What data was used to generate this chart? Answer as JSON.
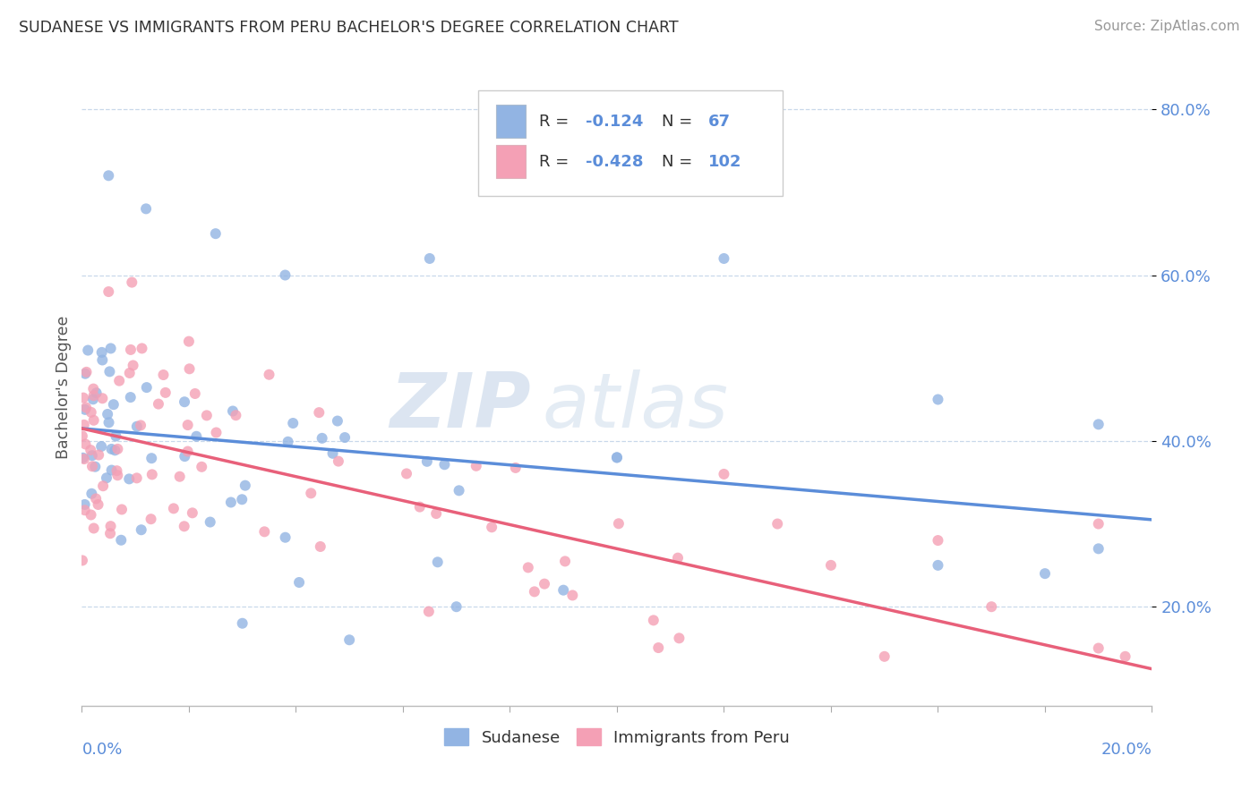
{
  "title": "SUDANESE VS IMMIGRANTS FROM PERU BACHELOR'S DEGREE CORRELATION CHART",
  "source": "Source: ZipAtlas.com",
  "ylabel": "Bachelor's Degree",
  "watermark_zip": "ZIP",
  "watermark_atlas": "atlas",
  "series": [
    {
      "name": "Sudanese",
      "scatter_color": "#92b4e3",
      "line_color": "#5b8dd9",
      "R": -0.124,
      "N": 67
    },
    {
      "name": "Immigrants from Peru",
      "scatter_color": "#f4a0b5",
      "line_color": "#e8607a",
      "R": -0.428,
      "N": 102
    }
  ],
  "xlim": [
    0.0,
    0.2
  ],
  "ylim": [
    0.08,
    0.85
  ],
  "yticks": [
    0.2,
    0.4,
    0.6,
    0.8
  ],
  "ytick_labels": [
    "20.0%",
    "40.0%",
    "60.0%",
    "80.0%"
  ],
  "blue_line": {
    "x0": 0.0,
    "x1": 0.2,
    "y0": 0.415,
    "y1": 0.305
  },
  "pink_line": {
    "x0": 0.0,
    "x1": 0.2,
    "y0": 0.415,
    "y1": 0.125
  },
  "grid_color": "#c8d8ea",
  "background_color": "#ffffff",
  "title_color": "#333333",
  "tick_label_color": "#5b8dd9"
}
